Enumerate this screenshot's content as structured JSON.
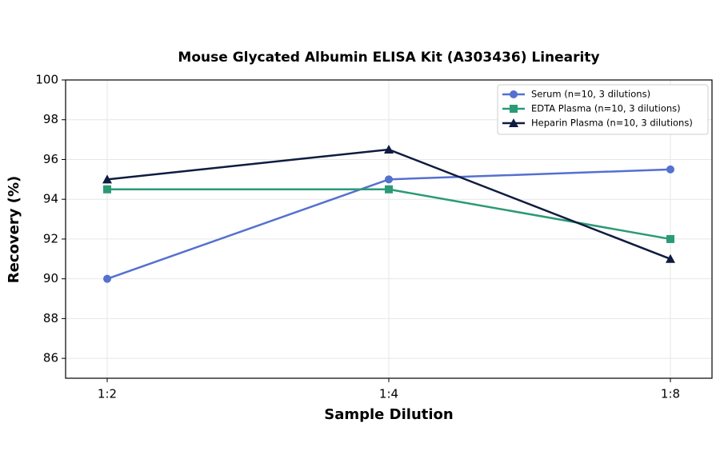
{
  "chart_data": {
    "type": "line",
    "title": "Mouse Glycated Albumin ELISA Kit (A303436) Linearity",
    "xlabel": "Sample Dilution",
    "ylabel": "Recovery (%)",
    "categories": [
      "1:2",
      "1:4",
      "1:8"
    ],
    "series": [
      {
        "name": "Serum (n=10, 3 dilutions)",
        "color": "#5470d0",
        "marker": "circle",
        "values": [
          90,
          95,
          95.5
        ]
      },
      {
        "name": "EDTA Plasma (n=10, 3 dilutions)",
        "color": "#2a9a77",
        "marker": "square",
        "values": [
          94.5,
          94.5,
          92
        ]
      },
      {
        "name": "Heparin Plasma (n=10, 3 dilutions)",
        "color": "#0f1c40",
        "marker": "triangle",
        "values": [
          95,
          96.5,
          91
        ]
      }
    ],
    "ylim": [
      85,
      100
    ],
    "yticks": [
      86,
      88,
      90,
      92,
      94,
      96,
      98,
      100
    ],
    "grid": true,
    "legend": "upper right"
  }
}
